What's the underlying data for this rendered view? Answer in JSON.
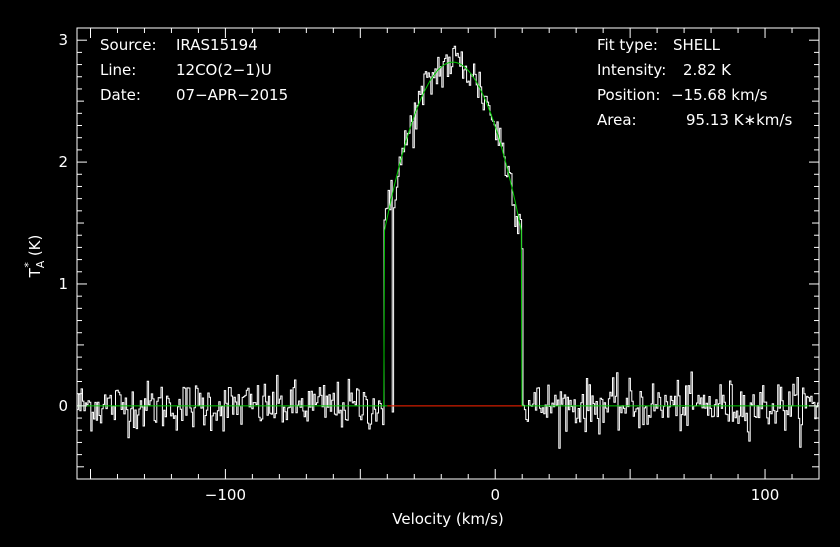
{
  "chart_data": {
    "type": "line",
    "xlabel": "Velocity (km/s)",
    "ylabel_main": "T",
    "ylabel_sup": "*",
    "ylabel_sub": "A",
    "ylabel_unit": "(K)",
    "xlim": [
      -155,
      120
    ],
    "ylim": [
      -0.6,
      3.1
    ],
    "x_ticks": [
      -100,
      0,
      100
    ],
    "x_tick_labels": [
      "−100",
      "0",
      "100"
    ],
    "y_ticks": [
      0,
      1,
      2,
      3
    ],
    "y_tick_labels": [
      "0",
      "1",
      "2",
      "3"
    ],
    "grid": false,
    "info_left": [
      {
        "key": "Source:",
        "value": "IRAS15194"
      },
      {
        "key": "Line:",
        "value": "12CO(2−1)U"
      },
      {
        "key": "Date:",
        "value": "07−APR−2015"
      }
    ],
    "info_right": [
      {
        "key": "Fit type:",
        "value": "SHELL"
      },
      {
        "key": "Intensity:",
        "value": "2.82 K"
      },
      {
        "key": "Position:",
        "value": "−15.68 km/s"
      },
      {
        "key": "Area:",
        "value": "95.13 K∗km/s"
      }
    ],
    "fit": {
      "type": "shell",
      "peak": 2.82,
      "center": -15.68,
      "half_width": 25.6,
      "horn_ratio": -0.5
    },
    "baseline": {
      "value": 0,
      "x_range": [
        -40,
        10
      ]
    },
    "spectrum": {
      "x_start": -155,
      "x_end": 120,
      "n_channels": 540,
      "noise_rms": 0.1,
      "spike": {
        "x": -38.5,
        "y": 1.85
      }
    },
    "colors": {
      "background": "#000000",
      "frame": "#ffffff",
      "spectrum": "#ffffff",
      "fit": "#00cc00",
      "baseline": "#ff0000",
      "text": "#ffffff"
    }
  }
}
